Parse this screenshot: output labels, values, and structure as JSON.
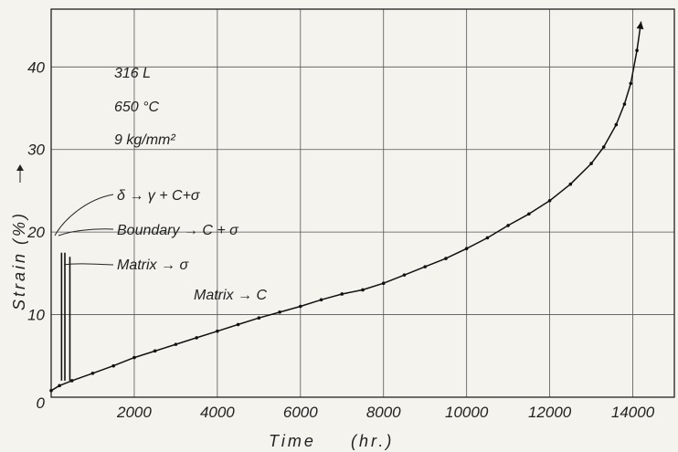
{
  "chart_data": {
    "type": "line",
    "title": "",
    "xlabel": "Time",
    "xunit": "(hr.)",
    "ylabel": "Strain",
    "yunit": "(%)",
    "xlim": [
      0,
      15000
    ],
    "ylim": [
      0,
      47
    ],
    "grid": true,
    "x_ticks": [
      2000,
      4000,
      6000,
      8000,
      10000,
      12000,
      14000
    ],
    "x_tick_labels": [
      "2000",
      "4000",
      "6000",
      "8000",
      "10000",
      "12000",
      "14000"
    ],
    "y_ticks": [
      0,
      10,
      20,
      30,
      40
    ],
    "y_tick_labels": [
      "0",
      "10",
      "20",
      "30",
      "40"
    ],
    "conditions": [
      "316 L",
      "650 °C",
      "9 kg/mm²"
    ],
    "annotations": {
      "delta": "δ → γ + C+σ",
      "boundary": "Boundary → C + σ",
      "matrix_sigma": "Matrix → σ",
      "matrix_c": "Matrix → C"
    },
    "precipitation_marks": [
      {
        "x": 250,
        "y_from": 2,
        "y_to": 17.5
      },
      {
        "x": 330,
        "y_from": 2,
        "y_to": 17.5
      },
      {
        "x": 450,
        "y_from": 2,
        "y_to": 17
      }
    ],
    "series": [
      {
        "x": [
          0,
          200,
          500,
          1000,
          1500,
          2000,
          2500,
          3000,
          3500,
          4000,
          4500,
          5000,
          5500,
          6000,
          6500,
          7000,
          7500,
          8000,
          8500,
          9000,
          9500,
          10000,
          10500,
          11000,
          11500,
          12000,
          12500,
          13000,
          13300,
          13600,
          13800,
          13950,
          14100,
          14200
        ],
        "y": [
          0.8,
          1.4,
          2.0,
          2.9,
          3.8,
          4.8,
          5.6,
          6.4,
          7.2,
          8.0,
          8.8,
          9.6,
          10.3,
          11.0,
          11.8,
          12.5,
          13.0,
          13.8,
          14.8,
          15.8,
          16.8,
          18.0,
          19.3,
          20.8,
          22.2,
          23.8,
          25.8,
          28.3,
          30.3,
          33.0,
          35.5,
          38.0,
          42.0,
          45.5
        ]
      }
    ]
  }
}
